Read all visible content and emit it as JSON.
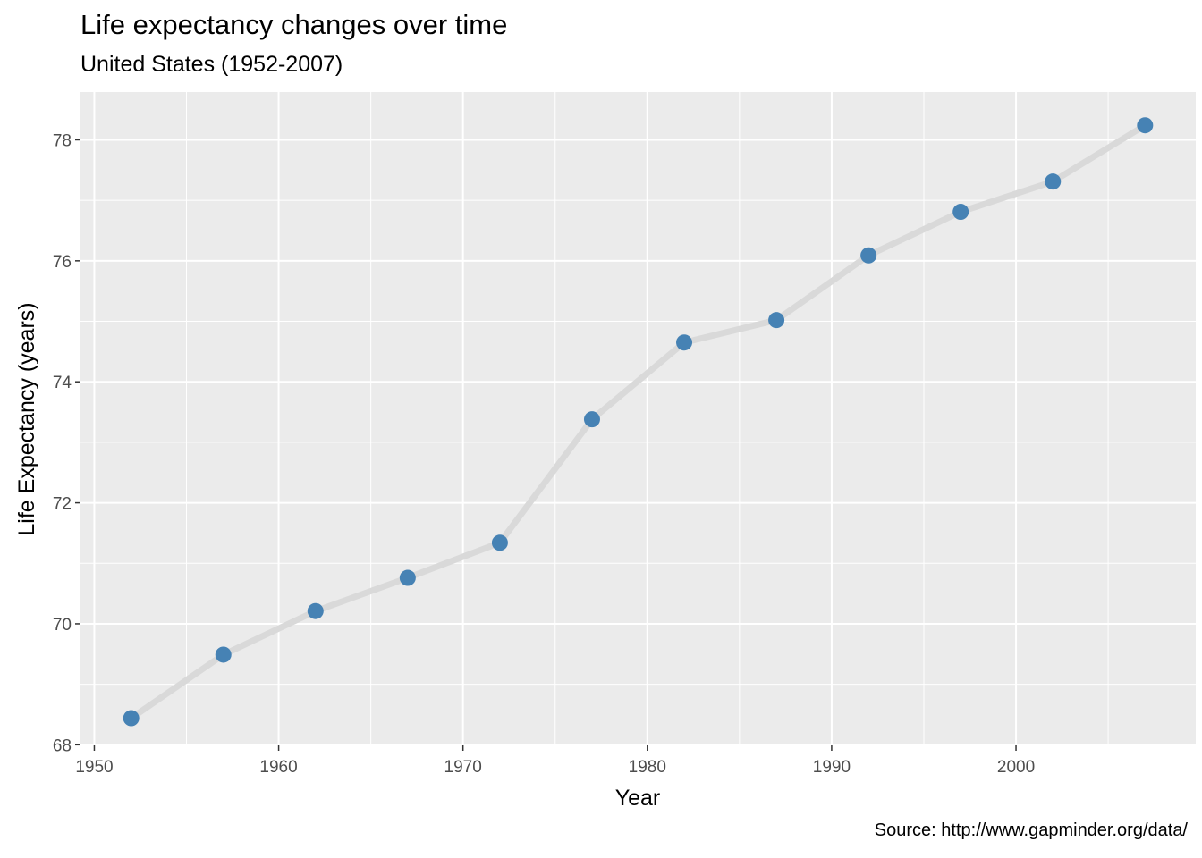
{
  "chart_data": {
    "type": "line",
    "title": "Life expectancy changes over time",
    "subtitle": "United States (1952-2007)",
    "caption": "Source: http://www.gapminder.org/data/",
    "xlabel": "Year",
    "ylabel": "Life Expectancy (years)",
    "xlim": [
      1949.25,
      2009.75
    ],
    "ylim": [
      67.99,
      78.79
    ],
    "x_ticks": [
      1950,
      1960,
      1970,
      1980,
      1990,
      2000
    ],
    "y_ticks": [
      68,
      70,
      72,
      74,
      76,
      78
    ],
    "grid": true,
    "series": [
      {
        "x": [
          1952,
          1957,
          1962,
          1967,
          1972,
          1977,
          1982,
          1987,
          1992,
          1997,
          2002,
          2007
        ],
        "y": [
          68.44,
          69.49,
          70.21,
          70.76,
          71.34,
          73.38,
          74.65,
          75.02,
          76.09,
          76.81,
          77.31,
          78.24
        ]
      }
    ],
    "colors": {
      "panel": "#EBEBEB",
      "grid": "#FFFFFF",
      "line": "#D9D9D9",
      "point": "#4682B4",
      "tick_text": "#4D4D4D",
      "tick_mark": "#333333"
    }
  }
}
